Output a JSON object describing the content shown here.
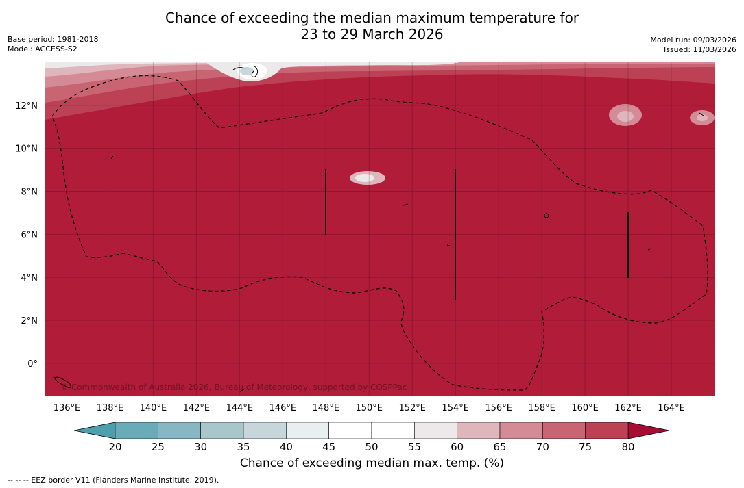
{
  "title": {
    "line1": "Chance of exceeding the median maximum temperature for",
    "line2": "23 to 29 March 2026"
  },
  "meta_left": {
    "base_period": "Base period: 1981-2018",
    "model": "Model: ACCESS-S2"
  },
  "meta_right": {
    "model_run": "Model run: 09/03/2026",
    "issued": "Issued: 11/03/2026"
  },
  "map": {
    "lon_range": [
      135,
      166
    ],
    "lat_range": [
      -1.5,
      14
    ],
    "x_ticks": [
      "136°E",
      "138°E",
      "140°E",
      "142°E",
      "144°E",
      "146°E",
      "148°E",
      "150°E",
      "152°E",
      "154°E",
      "156°E",
      "158°E",
      "160°E",
      "162°E",
      "164°E"
    ],
    "x_tick_lons": [
      136,
      138,
      140,
      142,
      144,
      146,
      148,
      150,
      152,
      154,
      156,
      158,
      160,
      162,
      164
    ],
    "y_ticks": [
      "12°N",
      "10°N",
      "8°N",
      "6°N",
      "4°N",
      "2°N",
      "0°"
    ],
    "y_tick_lats": [
      12,
      10,
      8,
      6,
      4,
      2,
      0
    ],
    "copyright": "© Commonwealth of Australia 2026, Bureau of Meteorology, supported by COSPPac",
    "dominant_color": "#b11c38"
  },
  "colorbar": {
    "ticks": [
      "20",
      "25",
      "30",
      "35",
      "40",
      "45",
      "50",
      "55",
      "60",
      "65",
      "70",
      "75",
      "80"
    ],
    "colors": [
      "#6aabb9",
      "#88b6c2",
      "#a8c7cb",
      "#c7d6db",
      "#e9eff1",
      "#ffffff",
      "#ffffff",
      "#ebe9ea",
      "#e0b6bd",
      "#d58b95",
      "#c96572",
      "#bc4155"
    ],
    "under_color": "#4e9fae",
    "over_color": "#a50e32",
    "label": "Chance of exceeding median max. temp. (%)"
  },
  "footnote": "--  --  -- EEZ border V11 (Flanders Marine Institute, 2019)."
}
